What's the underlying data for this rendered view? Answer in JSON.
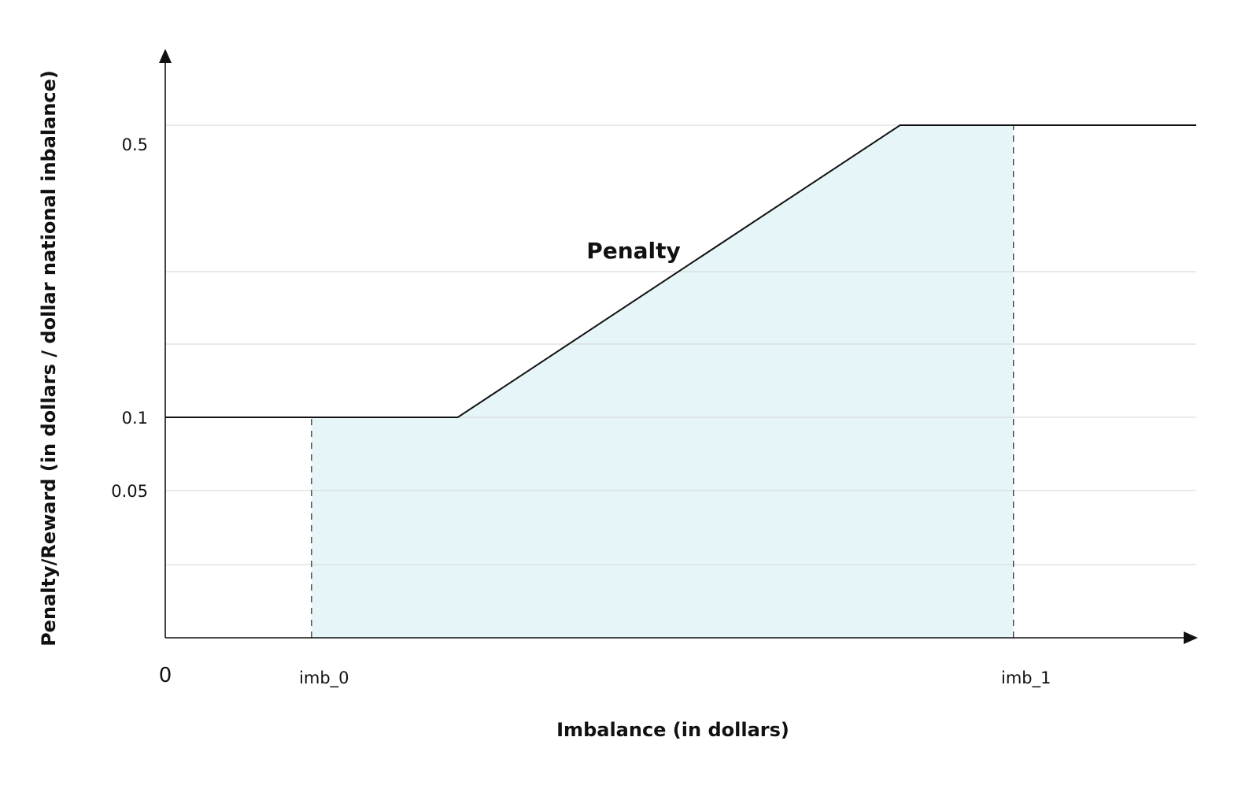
{
  "chart_data": {
    "type": "line",
    "title": "",
    "xlabel": "Imbalance (in dollars)",
    "ylabel": "Penalty/Reward (in dollars / dollar national inbalance)",
    "origin_label": "0",
    "x_ticks": [
      {
        "label": "imb_0",
        "x": 2
      },
      {
        "label": "imb_1",
        "x": 11.6
      }
    ],
    "y_ticks": [
      {
        "label": "0.5",
        "y": 0.5
      },
      {
        "label": "0.1",
        "y": 0.1
      },
      {
        "label": "0.05",
        "y": 0.05
      }
    ],
    "gridlines_y": [
      0.02,
      0.05,
      0.1,
      0.2,
      0.3,
      0.5
    ],
    "xlim": [
      0,
      14.1
    ],
    "series": [
      {
        "name": "Penalty",
        "x": [
          0,
          4,
          10.05,
          14.1
        ],
        "y": [
          0.1,
          0.1,
          0.5,
          0.5
        ]
      }
    ],
    "shaded_region": {
      "from_x": 2,
      "to_x": 11.6
    },
    "reference_lines_x": [
      2,
      11.6
    ],
    "annotations": [
      {
        "text": "Penalty",
        "x": 6.4,
        "y": 0.3
      }
    ],
    "grid": true,
    "legend": "none",
    "colors": {
      "line": "#111111",
      "fill": "#e6f6f8",
      "grid": "#d4d4d4",
      "axis": "#111111"
    }
  }
}
